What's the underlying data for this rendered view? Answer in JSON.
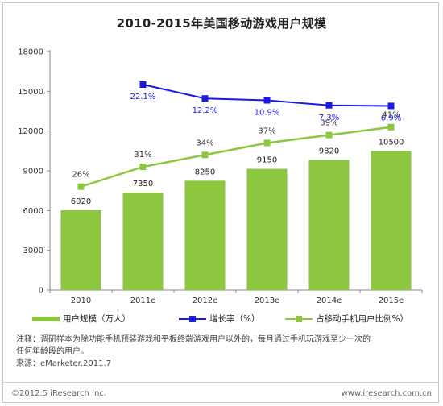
{
  "title": "2010-2015年美国移动游戏用户规模",
  "chart_data": {
    "type": "bar",
    "categories": [
      "2010",
      "2011e",
      "2012e",
      "2013e",
      "2014e",
      "2015e"
    ],
    "ylim": [
      0,
      18000
    ],
    "yticks": [
      "0",
      "3000",
      "6000",
      "9000",
      "12000",
      "15000",
      "18000"
    ],
    "grid": false,
    "legend_position": "bottom",
    "series": [
      {
        "name": "用户规模（万人）",
        "kind": "bar",
        "color": "#8dc63f",
        "values": [
          6020,
          7350,
          8250,
          9150,
          9820,
          10500
        ],
        "labels": [
          "6020",
          "7350",
          "8250",
          "9150",
          "9820",
          "10500"
        ]
      },
      {
        "name": "增长率（%）",
        "kind": "line",
        "color": "#1a1ae6",
        "values": [
          null,
          22.1,
          12.2,
          10.9,
          7.3,
          6.9
        ],
        "labels": [
          "",
          "22.1%",
          "12.2%",
          "10.9%",
          "7.3%",
          "6.9%"
        ]
      },
      {
        "name": "占移动手机用户比例%）",
        "kind": "line",
        "color": "#8dc63f",
        "values": [
          26,
          31,
          34,
          37,
          39,
          41
        ],
        "labels": [
          "26%",
          "31%",
          "34%",
          "37%",
          "39%",
          "41%"
        ]
      }
    ]
  },
  "notes": {
    "line1": "注释：调研样本为除功能手机预装游戏和平板终端游戏用户以外的，每月通过手机玩游戏至少一次的",
    "line2": "任何年龄段的用户。",
    "line3": "来源：eMarketer.2011.7"
  },
  "footer": {
    "copyright": "©2012.5 iResearch Inc.",
    "website": "www.iresearch.com.cn"
  }
}
